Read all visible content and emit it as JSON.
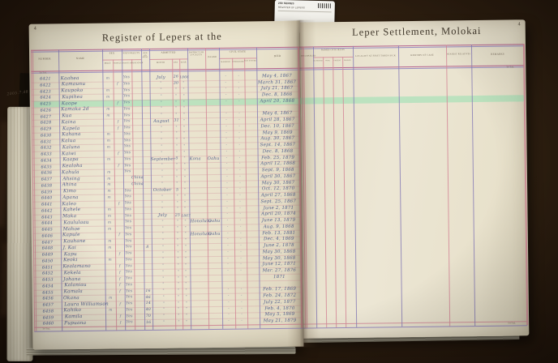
{
  "photo": {
    "archival_tab": {
      "line1": "260  SERIES",
      "line2": "REGISTER OF LEPERS"
    },
    "pencil_note": "2005.7.48"
  },
  "left_page": {
    "page_number": "4",
    "title": "Register of Lepers at the",
    "total_label": "Total",
    "header": {
      "number": "Number",
      "name": "Name",
      "sex": {
        "label": "Sex",
        "subs": [
          "Male",
          "Female"
        ]
      },
      "nationality": {
        "label": "Nationality",
        "subs": [
          "Hawaiian",
          "Foreigner"
        ]
      },
      "age": "Age on Adm.",
      "admitted": {
        "label": "Admitted",
        "subs": [
          "Month",
          "Day",
          "Year"
        ]
      },
      "district": "District or Locality",
      "island": "Island",
      "civil_state": {
        "label": "Civil State",
        "subs": [
          "Married",
          "Unmarried",
          "Not Stated"
        ]
      },
      "died": "Died"
    },
    "rows": [
      {
        "no": "6421",
        "name": "Kaahea",
        "sex": "m",
        "nat": "Yes",
        "age": "",
        "m": "July",
        "d": "26",
        "y": "1866",
        "district": "",
        "island": "",
        "civil": true,
        "died": "May 4, 1867",
        "hl": false
      },
      {
        "no": "6422",
        "name": "Kamaunu",
        "sex": "f",
        "nat": "Yes",
        "age": "",
        "m": "\"",
        "d": "30",
        "y": "\"",
        "district": "",
        "island": "",
        "civil": true,
        "died": "March 31, 1867",
        "hl": false
      },
      {
        "no": "6423",
        "name": "Kaupoko",
        "sex": "m",
        "nat": "Yes",
        "age": "",
        "m": "\"",
        "d": "\"",
        "y": "\"",
        "district": "",
        "island": "",
        "civil": true,
        "died": "July 21, 1867",
        "hl": false
      },
      {
        "no": "6424",
        "name": "Kupihea",
        "sex": "m",
        "nat": "Yes",
        "age": "",
        "m": "\"",
        "d": "\"",
        "y": "\"",
        "district": "",
        "island": "",
        "civil": true,
        "died": "Dec. 8, 1866",
        "hl": false
      },
      {
        "no": "6425",
        "name": "Kaope",
        "sex": "f",
        "nat": "Yes",
        "age": "",
        "m": "\"",
        "d": "\"",
        "y": "\"",
        "district": "",
        "island": "",
        "civil": true,
        "died": "April 20, 1868",
        "hl": true
      },
      {
        "no": "6426",
        "name": "Kamaka 2d",
        "sex": "m",
        "nat": "Yes",
        "age": "",
        "m": "\"",
        "d": "\"",
        "y": "\"",
        "district": "",
        "island": "",
        "civil": false,
        "died": "",
        "hl": false
      },
      {
        "no": "6427",
        "name": "Kua",
        "sex": "m",
        "nat": "Yes",
        "age": "",
        "m": "\"",
        "d": "\"",
        "y": "\"",
        "district": "",
        "island": "",
        "civil": true,
        "died": "May 4, 1867",
        "hl": false
      },
      {
        "no": "6428",
        "name": "Kaina",
        "sex": "f",
        "nat": "Yes",
        "age": "",
        "m": "August",
        "d": "31",
        "y": "\"",
        "district": "",
        "island": "",
        "civil": true,
        "died": "April 28, 1867",
        "hl": false
      },
      {
        "no": "6429",
        "name": "Kapela",
        "sex": "f",
        "nat": "Yes",
        "age": "",
        "m": "\"",
        "d": "\"",
        "y": "\"",
        "district": "",
        "island": "",
        "civil": true,
        "died": "Dec. 10, 1867",
        "hl": false
      },
      {
        "no": "6430",
        "name": "Kahana",
        "sex": "m",
        "nat": "Yes",
        "age": "",
        "m": "\"",
        "d": "\"",
        "y": "\"",
        "district": "",
        "island": "",
        "civil": true,
        "died": "May 9, 1869",
        "hl": false
      },
      {
        "no": "6431",
        "name": "Kalua",
        "sex": "m",
        "nat": "Yes",
        "age": "",
        "m": "\"",
        "d": "\"",
        "y": "\"",
        "district": "",
        "island": "",
        "civil": true,
        "died": "Aug. 30, 1867",
        "hl": false
      },
      {
        "no": "6432",
        "name": "Kaluna",
        "sex": "m",
        "nat": "Yes",
        "age": "",
        "m": "\"",
        "d": "\"",
        "y": "\"",
        "district": "",
        "island": "",
        "civil": true,
        "died": "Sept. 14, 1867",
        "hl": false
      },
      {
        "no": "6433",
        "name": "Kaiwi",
        "sex": "f",
        "nat": "Yes",
        "age": "",
        "m": "\"",
        "d": "\"",
        "y": "\"",
        "district": "",
        "island": "",
        "civil": true,
        "died": "Dec. 8, 1868",
        "hl": false
      },
      {
        "no": "6434",
        "name": "Kaapa",
        "sex": "m",
        "nat": "Yes",
        "age": "",
        "m": "September",
        "d": "5",
        "y": "\"",
        "district": "Kona",
        "island": "Oahu",
        "civil": true,
        "died": "Feb. 25, 1879",
        "hl": false
      },
      {
        "no": "6435",
        "name": "Kealoha",
        "sex": "f",
        "nat": "Yes",
        "age": "",
        "m": "\"",
        "d": "\"",
        "y": "\"",
        "district": "",
        "island": "",
        "civil": true,
        "died": "April 12, 1868",
        "hl": false
      },
      {
        "no": "6436",
        "name": "Kahula",
        "sex": "m",
        "nat": "Yes",
        "age": "",
        "m": "\"",
        "d": "\"",
        "y": "\"",
        "district": "",
        "island": "",
        "civil": true,
        "died": "Sept. 9, 1868",
        "hl": false
      },
      {
        "no": "6437",
        "name": "Ahsing",
        "sex": "m",
        "nat": "China",
        "age": "",
        "m": "\"",
        "d": "\"",
        "y": "\"",
        "district": "",
        "island": "",
        "civil": true,
        "died": "April 30, 1867",
        "hl": false
      },
      {
        "no": "6438",
        "name": "Ahina",
        "sex": "m",
        "nat": "China",
        "age": "",
        "m": "\"",
        "d": "\"",
        "y": "\"",
        "district": "",
        "island": "",
        "civil": true,
        "died": "May 30, 1867",
        "hl": false
      },
      {
        "no": "6439",
        "name": "Kimo",
        "sex": "m",
        "nat": "Yes",
        "age": "",
        "m": "October",
        "d": "5",
        "y": "\"",
        "district": "",
        "island": "",
        "civil": true,
        "died": "Oct. 12, 1870",
        "hl": false
      },
      {
        "no": "6440",
        "name": "Apana",
        "sex": "m",
        "nat": "Yes",
        "age": "",
        "m": "\"",
        "d": "\"",
        "y": "\"",
        "district": "",
        "island": "",
        "civil": true,
        "died": "April 27, 1868",
        "hl": false
      },
      {
        "no": "6441",
        "name": "Kaleo",
        "sex": "f",
        "nat": "Yes",
        "age": "",
        "m": "\"",
        "d": "\"",
        "y": "\"",
        "district": "",
        "island": "",
        "civil": true,
        "died": "Sept. 25, 1867",
        "hl": false
      },
      {
        "no": "6442",
        "name": "Kahele",
        "sex": "m",
        "nat": "Yes",
        "age": "",
        "m": "\"",
        "d": "\"",
        "y": "\"",
        "district": "",
        "island": "",
        "civil": true,
        "died": "June 2, 1871",
        "hl": false
      },
      {
        "no": "6443",
        "name": "Maka",
        "sex": "m",
        "nat": "Yes",
        "age": "",
        "m": "July",
        "d": "25",
        "y": "1867",
        "district": "",
        "island": "",
        "civil": true,
        "died": "April 20, 1874",
        "hl": false
      },
      {
        "no": "6444",
        "name": "Kaululaau",
        "sex": "m",
        "nat": "Yes",
        "age": "",
        "m": "\"",
        "d": "\"",
        "y": "\"",
        "district": "Honolulu",
        "island": "Oahu",
        "civil": true,
        "died": "June 13, 1879",
        "hl": false
      },
      {
        "no": "6445",
        "name": "Mahoe",
        "sex": "m",
        "nat": "Yes",
        "age": "",
        "m": "\"",
        "d": "\"",
        "y": "\"",
        "district": "",
        "island": "",
        "civil": true,
        "died": "Aug. 9, 1868",
        "hl": false
      },
      {
        "no": "6446",
        "name": "Kapule",
        "sex": "f",
        "nat": "Yes",
        "age": "",
        "m": "\"",
        "d": "\"",
        "y": "\"",
        "district": "Honolulu",
        "island": "Oahu",
        "civil": true,
        "died": "Feb. 13, 1881",
        "hl": false
      },
      {
        "no": "6447",
        "name": "Kauhane",
        "sex": "m",
        "nat": "Yes",
        "age": "",
        "m": "\"",
        "d": "\"",
        "y": "\"",
        "district": "",
        "island": "",
        "civil": true,
        "died": "Dec. 4, 1869",
        "hl": false
      },
      {
        "no": "6448",
        "name": "J. Kai",
        "sex": "m",
        "nat": "Yes",
        "age": "8",
        "m": "\"",
        "d": "\"",
        "y": "\"",
        "district": "",
        "island": "",
        "civil": true,
        "died": "June 2, 1878",
        "hl": false
      },
      {
        "no": "6449",
        "name": "Kapu",
        "sex": "f",
        "nat": "Yes",
        "age": "",
        "m": "\"",
        "d": "\"",
        "y": "\"",
        "district": "",
        "island": "",
        "civil": true,
        "died": "May 30, 1868",
        "hl": false
      },
      {
        "no": "6450",
        "name": "Keoki",
        "sex": "m",
        "nat": "Yes",
        "age": "",
        "m": "\"",
        "d": "\"",
        "y": "\"",
        "district": "",
        "island": "",
        "civil": true,
        "died": "May 30, 1868",
        "hl": false
      },
      {
        "no": "6451",
        "name": "Kealamano",
        "sex": "f",
        "nat": "Yes",
        "age": "",
        "m": "\"",
        "d": "\"",
        "y": "\"",
        "district": "",
        "island": "",
        "civil": true,
        "died": "June 12, 1871",
        "hl": false
      },
      {
        "no": "6452",
        "name": "Kekela",
        "sex": "f",
        "nat": "Yes",
        "age": "",
        "m": "\"",
        "d": "\"",
        "y": "\"",
        "district": "",
        "island": "",
        "civil": true,
        "died": "Mar. 27, 1876",
        "hl": false
      },
      {
        "no": "6453",
        "name": "Johana",
        "sex": "f",
        "nat": "Yes",
        "age": "",
        "m": "\"",
        "d": "\"",
        "y": "\"",
        "district": "",
        "island": "",
        "civil": false,
        "died": "1871",
        "hl": false
      },
      {
        "no": "6454",
        "name": "Kalaniau",
        "sex": "f",
        "nat": "Yes",
        "age": "",
        "m": "\"",
        "d": "\"",
        "y": "\"",
        "district": "",
        "island": "",
        "civil": false,
        "died": "",
        "hl": false
      },
      {
        "no": "6455",
        "name": "Kamala",
        "sex": "f",
        "nat": "Yes",
        "age": "16",
        "m": "\"",
        "d": "\"",
        "y": "\"",
        "district": "",
        "island": "",
        "civil": true,
        "died": "Feb. 17, 1869",
        "hl": false
      },
      {
        "no": "6456",
        "name": "Okana",
        "sex": "m",
        "nat": "Yes",
        "age": "46",
        "m": "\"",
        "d": "\"",
        "y": "\"",
        "district": "",
        "island": "",
        "civil": true,
        "died": "Feb. 24, 1872",
        "hl": false
      },
      {
        "no": "6457",
        "name": "Laura Williamson",
        "sex": "f",
        "nat": "Yes",
        "age": "14",
        "m": "\"",
        "d": "\"",
        "y": "\"",
        "district": "",
        "island": "",
        "civil": true,
        "died": "July 22, 1877",
        "hl": false
      },
      {
        "no": "6458",
        "name": "Kahiko",
        "sex": "m",
        "nat": "Yes",
        "age": "40",
        "m": "\"",
        "d": "\"",
        "y": "\"",
        "district": "",
        "island": "",
        "civil": true,
        "died": "Feb. 4, 1870",
        "hl": false
      },
      {
        "no": "6459",
        "name": "Kamila",
        "sex": "f",
        "nat": "Yes",
        "age": "70",
        "m": "\"",
        "d": "\"",
        "y": "\"",
        "district": "",
        "island": "",
        "civil": true,
        "died": "May 5, 1869",
        "hl": false
      },
      {
        "no": "6460",
        "name": "Pupuana",
        "sex": "f",
        "nat": "Yes",
        "age": "16",
        "m": "\"",
        "d": "\"",
        "y": "\"",
        "district": "",
        "island": "",
        "civil": true,
        "died": "May 21, 1879",
        "hl": false
      }
    ]
  },
  "right_page": {
    "page_number": "4",
    "title": "Leper Settlement, Molokai",
    "total_label": "Total",
    "header": {
      "discharged": "Discharged",
      "kokuas": {
        "label": "Names of Kokuas",
        "subs": [
          "Husband",
          "Wife",
          "Parent",
          "Friend"
        ]
      },
      "locality_first_sick": "Locality at First Taken Sick",
      "history": "History of Case",
      "relatives": "Nearest Relatives",
      "remarks": "Remarks"
    }
  }
}
